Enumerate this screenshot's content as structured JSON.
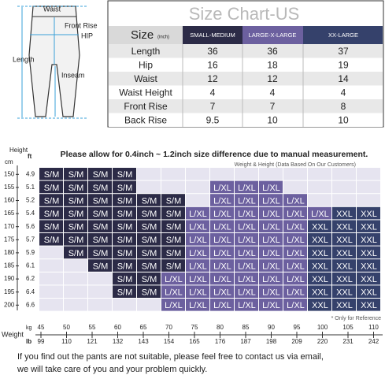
{
  "diagram": {
    "labels": [
      "Waist",
      "Front Rise",
      "HIP",
      "Length",
      "Inseam"
    ]
  },
  "table": {
    "title": "Size Chart-US",
    "size_label": "Size",
    "unit": "(inch)",
    "columns": [
      "SMALL-MEDIUM",
      "LARGE-X-LARGE",
      "XX-LARGE"
    ],
    "rows": [
      [
        "Length",
        36,
        36,
        37
      ],
      [
        "Hip",
        16,
        18,
        19
      ],
      [
        "Waist",
        12,
        12,
        14
      ],
      [
        "Waist Height",
        4,
        4,
        4
      ],
      [
        "Front Rise",
        7,
        7,
        8
      ],
      [
        "Back Rise",
        9.5,
        10,
        10
      ]
    ]
  },
  "grid": {
    "note": "Please allow for 0.4inch ~ 1.2inch size difference due to manual measurement.",
    "subtitle": "Weight & Height  (Data Based On Our Customers)",
    "height_label": "Height",
    "cm_label": "cm",
    "ft_label": "ft",
    "heights_cm": [
      150,
      155,
      160,
      165,
      170,
      175,
      180,
      185,
      190,
      195,
      200
    ],
    "heights_ft": [
      4.9,
      5.1,
      5.2,
      5.4,
      5.6,
      5.7,
      5.9,
      6.1,
      6.2,
      6.4,
      6.6
    ],
    "weight_label": "Weight",
    "kg_label": "kg",
    "lb_label": "lb",
    "weights_kg": [
      45,
      50,
      55,
      60,
      65,
      70,
      75,
      80,
      85,
      90,
      95,
      100,
      105,
      110
    ],
    "weights_lb": [
      99,
      110,
      121,
      132,
      143,
      154,
      165,
      176,
      187,
      198,
      209,
      220,
      231,
      242
    ],
    "reference": "* Only for Reference",
    "cell_colors": {
      "S/M": "#2c2b47",
      "L/XL": "#6c609f",
      "XXL": "#35416b"
    },
    "empty_color": "#e6e4f0",
    "cells": [
      [
        "S/M",
        "S/M",
        "S/M",
        "S/M",
        null,
        null,
        null,
        null,
        null,
        null,
        null,
        null,
        null,
        null
      ],
      [
        "S/M",
        "S/M",
        "S/M",
        "S/M",
        null,
        null,
        null,
        "L/XL",
        "L/XL",
        "L/XL",
        null,
        null,
        null,
        null
      ],
      [
        "S/M",
        "S/M",
        "S/M",
        "S/M",
        "S/M",
        "S/M",
        null,
        "L/XL",
        "L/XL",
        "L/XL",
        "L/XL",
        null,
        null,
        null
      ],
      [
        "S/M",
        "S/M",
        "S/M",
        "S/M",
        "S/M",
        "S/M",
        "L/XL",
        "L/XL",
        "L/XL",
        "L/XL",
        "L/XL",
        "L/XL",
        "XXL",
        "XXL"
      ],
      [
        "S/M",
        "S/M",
        "S/M",
        "S/M",
        "S/M",
        "S/M",
        "L/XL",
        "L/XL",
        "L/XL",
        "L/XL",
        "L/XL",
        "XXL",
        "XXL",
        "XXL"
      ],
      [
        "S/M",
        "S/M",
        "S/M",
        "S/M",
        "S/M",
        "S/M",
        "L/XL",
        "L/XL",
        "L/XL",
        "L/XL",
        "L/XL",
        "XXL",
        "XXL",
        "XXL"
      ],
      [
        null,
        "S/M",
        "S/M",
        "S/M",
        "S/M",
        "S/M",
        "L/XL",
        "L/XL",
        "L/XL",
        "L/XL",
        "L/XL",
        "XXL",
        "XXL",
        "XXL"
      ],
      [
        null,
        null,
        "S/M",
        "S/M",
        "S/M",
        "S/M",
        "L/XL",
        "L/XL",
        "L/XL",
        "L/XL",
        "L/XL",
        "XXL",
        "XXL",
        "XXL"
      ],
      [
        null,
        null,
        null,
        "S/M",
        "S/M",
        "L/XL",
        "L/XL",
        "L/XL",
        "L/XL",
        "L/XL",
        "L/XL",
        "XXL",
        "XXL",
        "XXL"
      ],
      [
        null,
        null,
        null,
        "S/M",
        "S/M",
        "L/XL",
        "L/XL",
        "L/XL",
        "L/XL",
        "L/XL",
        "L/XL",
        "XXL",
        "XXL",
        "XXL"
      ],
      [
        null,
        null,
        null,
        null,
        null,
        "L/XL",
        "L/XL",
        "L/XL",
        "L/XL",
        "L/XL",
        "L/XL",
        "XXL",
        "XXL",
        "XXL"
      ]
    ]
  },
  "footer": [
    "If you find out the pants are not suitable, please feel free to contact us via email,",
    "we will take care of you and your problem quickly."
  ]
}
